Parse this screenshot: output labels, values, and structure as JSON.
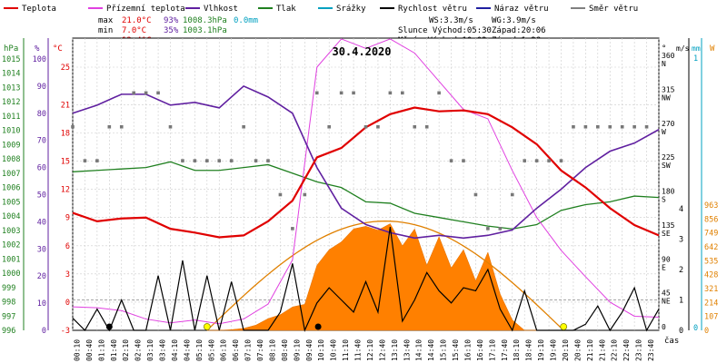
{
  "chart_data": {
    "type": "line",
    "title": "30.4.2020",
    "xlabel": "čas",
    "x_ticks": [
      "00:10",
      "00:40",
      "01:10",
      "01:40",
      "02:10",
      "02:40",
      "03:10",
      "03:40",
      "04:10",
      "04:40",
      "05:10",
      "05:40",
      "06:10",
      "06:40",
      "07:10",
      "07:40",
      "08:10",
      "08:40",
      "09:10",
      "09:40",
      "10:10",
      "10:40",
      "11:10",
      "11:40",
      "12:10",
      "12:40",
      "13:10",
      "13:40",
      "14:10",
      "14:40",
      "15:10",
      "15:40",
      "16:10",
      "16:40",
      "17:10",
      "17:40",
      "18:10",
      "18:40",
      "19:10",
      "19:40",
      "20:10",
      "20:40",
      "21:10",
      "21:40",
      "22:10",
      "22:40",
      "23:10",
      "23:40"
    ],
    "legend": [
      {
        "name": "Teplota",
        "color": "#e00000"
      },
      {
        "name": "Přízemní teplota",
        "color": "#e040e0"
      },
      {
        "name": "Vlhkost",
        "color": "#6020a0"
      },
      {
        "name": "Tlak",
        "color": "#208020"
      },
      {
        "name": "Srážky",
        "color": "#00a0c0"
      },
      {
        "name": "Rychlost větru",
        "color": "#000000"
      },
      {
        "name": "Náraz větru",
        "color": "#2020a0"
      },
      {
        "name": "Směr větru",
        "color": "#808080"
      }
    ],
    "stats": {
      "max": {
        "label": "max",
        "temp": "21.0°C",
        "hum": "93%",
        "press": "1008.3hPa",
        "rain": "0.0mm"
      },
      "min": {
        "label": "min",
        "temp": "7.0°C",
        "hum": "35%",
        "press": "1003.1hPa"
      },
      "avg": {
        "label": "avg",
        "temp": "13.4°C"
      }
    },
    "info": {
      "ws": "WS:3.3m/s",
      "wg": "WG:3.9m/s",
      "sun": "Slunce Východ:05:30",
      "sunset": "Západ:20:06",
      "moon": "Měsíc  Východ:10:03",
      "moonset": "Západ:1:28"
    },
    "axes": {
      "pressure": {
        "unit": "hPa",
        "ticks": [
          "1015",
          "1014",
          "1013",
          "1012",
          "1011",
          "1010",
          "1009",
          "1008",
          "1007",
          "1006",
          "1005",
          "1004",
          "1003",
          "1002",
          "1001",
          "1000",
          "999",
          "998",
          "997",
          "996"
        ],
        "color": "#208020"
      },
      "humidity": {
        "unit": "%",
        "ticks": [
          "100",
          "90",
          "80",
          "70",
          "60",
          "50",
          "40",
          "30",
          "20",
          "10",
          "0"
        ],
        "color": "#6020a0"
      },
      "temperature": {
        "unit": "°C",
        "ticks": [
          "25",
          "21",
          "18",
          "15",
          "12",
          "9",
          "6",
          "3",
          "0",
          "-3"
        ],
        "color": "#e00000"
      },
      "direction": {
        "unit": "°",
        "ticks": [
          {
            "deg": "360",
            "dir": "N"
          },
          {
            "deg": "315",
            "dir": "NW"
          },
          {
            "deg": "270",
            "dir": "W"
          },
          {
            "deg": "225",
            "dir": "SW"
          },
          {
            "deg": "180",
            "dir": "S"
          },
          {
            "deg": "135",
            "dir": "SE"
          },
          {
            "deg": "90",
            "dir": "E"
          },
          {
            "deg": "45",
            "dir": "NE"
          },
          {
            "deg": "0",
            "dir": ""
          }
        ]
      },
      "wind": {
        "unit": "m/s",
        "ticks": [
          "4",
          "3",
          "2",
          "1",
          "0"
        ]
      },
      "rain": {
        "unit": "mm",
        "ticks": [
          "1",
          "0"
        ]
      },
      "solar": {
        "unit": "W",
        "ticks": [
          "963",
          "856",
          "749",
          "642",
          "535",
          "428",
          "321",
          "214",
          "107",
          "0"
        ],
        "color": "#e08000"
      }
    },
    "series": {
      "temperature_hours": [
        0,
        1,
        2,
        3,
        4,
        5,
        6,
        7,
        8,
        9,
        10,
        11,
        12,
        13,
        14,
        15,
        16,
        17,
        18,
        19,
        20,
        21,
        22,
        23,
        24
      ],
      "temperature": [
        9.5,
        8.6,
        8.9,
        9.0,
        7.8,
        7.4,
        6.9,
        7.1,
        8.6,
        10.8,
        15.4,
        16.4,
        18.6,
        20.0,
        20.7,
        20.3,
        20.4,
        20.0,
        18.6,
        16.8,
        14.0,
        12.2,
        10.0,
        8.2,
        7.1
      ],
      "ground_temperature": [
        -0.5,
        -0.6,
        -0.9,
        -1.8,
        -2.2,
        -1.9,
        -2.3,
        -1.8,
        -0.2,
        4.5,
        25.0,
        28.0,
        27.0,
        28.0,
        26.5,
        23.5,
        20.5,
        19.5,
        14.0,
        9.0,
        5.5,
        2.7,
        0.0,
        -1.5,
        -1.6
      ],
      "humidity": [
        80,
        83,
        87,
        87,
        83,
        84,
        82,
        90,
        86,
        80,
        60,
        45,
        39,
        36,
        34,
        35,
        34,
        35,
        37,
        45,
        52,
        60,
        66,
        69,
        74
      ],
      "pressure": [
        1007.1,
        1007.2,
        1007.3,
        1007.4,
        1007.8,
        1007.2,
        1007.2,
        1007.4,
        1007.6,
        1007.0,
        1006.4,
        1006.0,
        1005.0,
        1004.9,
        1004.2,
        1003.9,
        1003.6,
        1003.3,
        1003.1,
        1003.4,
        1004.4,
        1004.8,
        1005.0,
        1005.4,
        1005.3
      ],
      "wind_speed_hours": [
        0,
        0.5,
        1,
        1.5,
        2,
        2.5,
        3,
        3.5,
        4,
        4.5,
        5,
        5.5,
        6,
        6.5,
        7,
        7.5,
        8,
        8.5,
        9,
        9.5,
        10,
        10.5,
        11,
        11.5,
        12,
        12.5,
        13,
        13.5,
        14,
        14.5,
        15,
        15.5,
        16,
        16.5,
        17,
        17.5,
        18,
        18.5,
        19,
        19.5,
        20,
        20.5,
        21,
        21.5,
        22,
        22.5,
        23,
        23.5,
        24
      ],
      "wind_speed": [
        0.4,
        0.0,
        0.7,
        0.0,
        1.0,
        0.0,
        0.0,
        1.8,
        0.0,
        2.3,
        0.0,
        1.8,
        0.0,
        1.6,
        0.0,
        0.0,
        0.0,
        0.6,
        2.2,
        0.0,
        0.9,
        1.4,
        1.0,
        0.6,
        1.6,
        0.6,
        3.4,
        0.3,
        1.0,
        1.9,
        1.3,
        0.9,
        1.4,
        1.3,
        2.0,
        0.7,
        0.0,
        1.3,
        0.0,
        0.0,
        0.0,
        0.0,
        0.2,
        0.8,
        0.0,
        0.6,
        1.4,
        0.0,
        0.7
      ],
      "solar_hours": [
        5.5,
        6,
        6.5,
        7,
        7.5,
        8,
        8.5,
        9,
        9.5,
        10,
        10.5,
        11,
        11.5,
        12,
        12.5,
        13,
        13.5,
        14,
        14.5,
        15,
        15.5,
        16,
        16.5,
        17,
        17.5,
        18,
        18.5,
        19,
        19.5,
        20,
        20.1
      ],
      "solar": [
        0,
        0,
        5,
        15,
        40,
        90,
        120,
        180,
        200,
        500,
        620,
        680,
        780,
        800,
        770,
        820,
        650,
        780,
        500,
        720,
        480,
        620,
        380,
        600,
        280,
        80,
        0,
        0,
        0,
        0,
        0
      ],
      "solar_theoretical_max": 840,
      "wind_direction_hours": [
        0,
        0.5,
        1,
        1.5,
        2,
        2.5,
        3,
        3.5,
        4,
        4.5,
        5,
        5.5,
        6,
        6.5,
        7,
        7.5,
        8,
        8.5,
        9,
        9.5,
        10,
        10.5,
        11,
        11.5,
        12,
        12.5,
        13,
        13.5,
        14,
        14.5,
        15,
        15.5,
        16,
        16.5,
        17,
        17.5,
        18,
        18.5,
        19,
        19.5,
        20,
        20.5,
        21,
        21.5,
        22,
        22.5,
        23,
        23.5
      ],
      "wind_direction": [
        270,
        225,
        225,
        270,
        270,
        315,
        315,
        315,
        270,
        225,
        225,
        225,
        225,
        225,
        270,
        225,
        225,
        180,
        135,
        180,
        315,
        270,
        315,
        315,
        270,
        270,
        315,
        315,
        270,
        270,
        315,
        225,
        225,
        180,
        135,
        135,
        180,
        225,
        225,
        225,
        225,
        270,
        270,
        270,
        270,
        270,
        270,
        270
      ]
    }
  }
}
